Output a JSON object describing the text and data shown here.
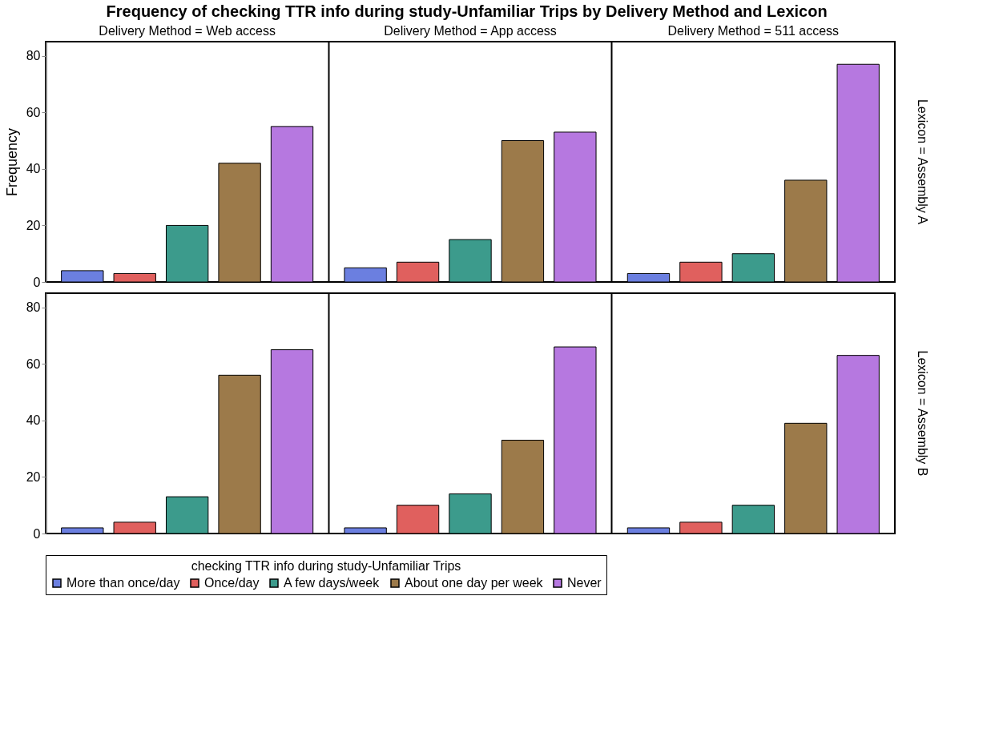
{
  "chart_data": [
    {
      "type": "bar",
      "title": "Frequency of checking TTR info during study-Unfamiliar Trips by Delivery Method and Lexicon",
      "ylabel": "Frequency",
      "y2label": "Lexicon = Assembly A",
      "legend": "bottom",
      "legend_title": "checking TTR info during study-Unfamiliar Trips",
      "categories": [
        "Delivery Method = Web access",
        "Delivery Method = App access",
        "Delivery Method = 511 access"
      ],
      "ylim": [
        0,
        85
      ],
      "yticks": [
        0,
        20,
        40,
        60,
        80
      ],
      "grid": "x",
      "series": [
        {
          "name": "More than once/day",
          "color": "#6b7fe0",
          "values": [
            4,
            5,
            3
          ]
        },
        {
          "name": "Once/day",
          "color": "#e0605e",
          "values": [
            3,
            7,
            7
          ]
        },
        {
          "name": "A few days/week",
          "color": "#3c9b8c",
          "values": [
            20,
            15,
            10
          ]
        },
        {
          "name": "About one day per week",
          "color": "#9c7a4a",
          "values": [
            42,
            50,
            36
          ]
        },
        {
          "name": "Never",
          "color": "#b678e0",
          "values": [
            55,
            53,
            77
          ]
        }
      ]
    },
    {
      "type": "bar",
      "y2label": "Lexicon = Assembly B",
      "legend": "bottom",
      "categories": [
        null,
        null,
        null
      ],
      "ylim": [
        0,
        85
      ],
      "yticks": [
        0,
        20,
        40,
        60,
        80
      ],
      "tick_labels": "y",
      "grid": "x",
      "series": [
        {
          "name": "More than once/day",
          "color": "#6b7fe0",
          "values": [
            2,
            2,
            2
          ]
        },
        {
          "name": "Once/day",
          "color": "#e0605e",
          "values": [
            4,
            10,
            4
          ]
        },
        {
          "name": "A few days/week",
          "color": "#3c9b8c",
          "values": [
            13,
            14,
            10
          ]
        },
        {
          "name": "About one day per week",
          "color": "#9c7a4a",
          "values": [
            56,
            33,
            39
          ]
        },
        {
          "name": "Never",
          "color": "#b678e0",
          "values": [
            65,
            66,
            63
          ]
        }
      ]
    }
  ]
}
